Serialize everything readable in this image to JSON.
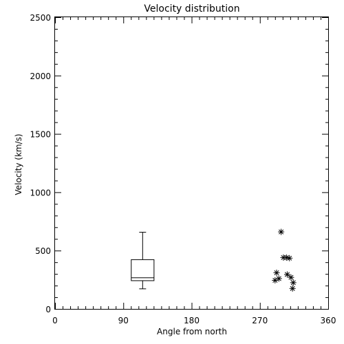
{
  "chart_data": {
    "type": "scatter",
    "title": "Velocity distribution",
    "xlabel": "Angle from north",
    "ylabel": "Velocity (km/s)",
    "xlim": [
      0,
      360
    ],
    "ylim": [
      0,
      2500
    ],
    "xticks": [
      0,
      90,
      180,
      270,
      360
    ],
    "xtick_labels": [
      "0",
      "90",
      "180",
      "270",
      "360"
    ],
    "yticks": [
      0,
      500,
      1000,
      1500,
      2000,
      2500
    ],
    "ytick_labels": [
      "0",
      "500",
      "1000",
      "1500",
      "2000",
      "2500"
    ],
    "x_minor_step": 10,
    "y_minor_step": 100,
    "grid": false,
    "legend": "none",
    "boxplot": {
      "x": 115,
      "width": 30,
      "min": 175,
      "q1": 245,
      "median": 270,
      "q3": 425,
      "max": 660
    },
    "points": [
      {
        "x": 298,
        "y": 660
      },
      {
        "x": 301,
        "y": 440
      },
      {
        "x": 305,
        "y": 440
      },
      {
        "x": 309,
        "y": 435
      },
      {
        "x": 306,
        "y": 295
      },
      {
        "x": 292,
        "y": 310
      },
      {
        "x": 290,
        "y": 245
      },
      {
        "x": 295,
        "y": 260
      },
      {
        "x": 311,
        "y": 270
      },
      {
        "x": 314,
        "y": 225
      },
      {
        "x": 313,
        "y": 175
      }
    ],
    "marker": "asterisk",
    "color": "#000000"
  }
}
